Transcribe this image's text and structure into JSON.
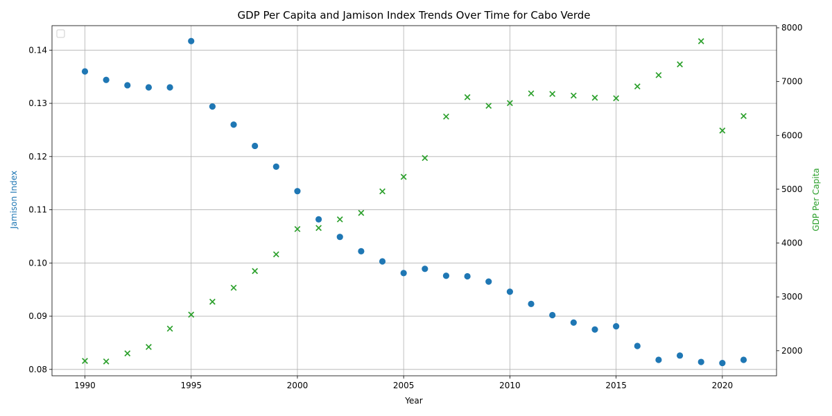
{
  "chart_data": {
    "type": "scatter",
    "title": "GDP Per Capita and Jamison Index Trends Over Time for Cabo Verde",
    "xlabel": "Year",
    "ylabel_left": "Jamison Index",
    "ylabel_right": "GDP Per Capita",
    "xlim": [
      1988.45,
      1992.55
    ],
    "x_ticks": [
      1990,
      1995,
      2000,
      2005,
      2010,
      2015,
      2020
    ],
    "ylim_left": [
      0.0788,
      0.1446
    ],
    "y_ticks_left": [
      0.08,
      0.09,
      0.1,
      0.11,
      0.12,
      0.13,
      0.14
    ],
    "y_tick_labels_left": [
      "0.08",
      "0.09",
      "0.10",
      "0.11",
      "0.12",
      "0.13",
      "0.14"
    ],
    "ylim_right": [
      1534,
      8039
    ],
    "y_ticks_right": [
      2000,
      3000,
      4000,
      5000,
      6000,
      7000,
      8000
    ],
    "grid": true,
    "legend": "top-left (empty)",
    "colors": {
      "left": "#1f77b4",
      "right": "#2ca02c"
    },
    "x": [
      1990,
      1991,
      1992,
      1993,
      1994,
      1995,
      1996,
      1997,
      1998,
      1999,
      2000,
      2001,
      2002,
      2003,
      2004,
      2005,
      2006,
      2007,
      2008,
      2009,
      2010,
      2011,
      2012,
      2013,
      2014,
      2015,
      2016,
      2017,
      2018,
      2019,
      2020,
      2021
    ],
    "series": [
      {
        "name": "Jamison Index",
        "axis": "left",
        "marker": "circle",
        "values": [
          0.136,
          0.1344,
          0.1334,
          0.133,
          0.133,
          0.1417,
          0.1294,
          0.126,
          0.122,
          0.1181,
          0.1135,
          0.1082,
          0.1049,
          0.1022,
          0.1003,
          0.0981,
          0.0989,
          0.0976,
          0.0975,
          0.0965,
          0.0946,
          0.0923,
          0.0902,
          0.0888,
          0.0875,
          0.0881,
          0.0844,
          0.0818,
          0.0826,
          0.0814,
          0.0812,
          0.0818
        ]
      },
      {
        "name": "GDP Per Capita",
        "axis": "right",
        "marker": "x",
        "values": [
          1810,
          1800,
          1950,
          2070,
          2410,
          2670,
          2910,
          3170,
          3480,
          3790,
          4260,
          4280,
          4440,
          4560,
          4960,
          5230,
          5580,
          6350,
          6710,
          6550,
          6600,
          6780,
          6770,
          6740,
          6700,
          6690,
          6910,
          7120,
          7320,
          7750,
          6090,
          6360
        ]
      }
    ]
  }
}
